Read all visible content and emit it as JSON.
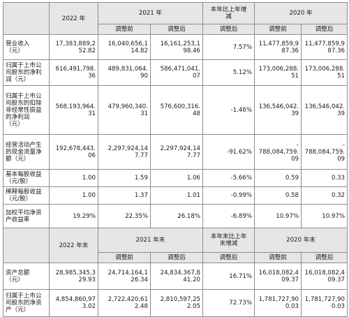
{
  "header1": {
    "year2022": "2022 年",
    "year2021": "2021 年",
    "yoy": [
      "本年比上年增",
      "减"
    ],
    "year2020": "2020 年",
    "adj_before": "调整前",
    "adj_after": "调整后",
    "adj_after_yoy": "调整后"
  },
  "header2": {
    "year2022": "2022 年末",
    "year2021": "2021 年末",
    "yoy": [
      "本年末比上年",
      "末增减"
    ],
    "year2020": "2020 年末",
    "adj_before": "调整前",
    "adj_after": "调整后",
    "adj_after_yoy": "调整后"
  },
  "rows": [
    {
      "label": [
        "营业收入",
        "（元）"
      ],
      "y2022": [
        "17,383,889,2",
        "52.82"
      ],
      "y2021_before": [
        "16,040,656,1",
        "14.82"
      ],
      "y2021_after": [
        "16,161,253,1",
        "98.46"
      ],
      "yoy": [
        "7.57%"
      ],
      "y2020_before": [
        "11,477,859,9",
        "87.36"
      ],
      "y2020_after": [
        "11,477,859,9",
        "87.36"
      ]
    },
    {
      "label": [
        "归属于上市公",
        "司股东的净利",
        "润（元）"
      ],
      "y2022": [
        "616,491,798.",
        "36"
      ],
      "y2021_before": [
        "489,831,064.",
        "90"
      ],
      "y2021_after": [
        "586,471,041.",
        "07"
      ],
      "yoy": [
        "5.12%"
      ],
      "y2020_before": [
        "173,006,288.",
        "51"
      ],
      "y2020_after": [
        "173,006,288.",
        "51"
      ]
    },
    {
      "label": [
        "归属于上市公",
        "司股东的扣除",
        "非经常性损益",
        "的净利润",
        "（元）"
      ],
      "y2022": [
        "568,193,964.",
        "31"
      ],
      "y2021_before": [
        "479,960,340.",
        "31"
      ],
      "y2021_after": [
        "576,600,316.",
        "48"
      ],
      "yoy": [
        "-1.46%"
      ],
      "y2020_before": [
        "136,546,042.",
        "39"
      ],
      "y2020_after": [
        "136,546,042.",
        "39"
      ]
    },
    {
      "label": [
        "经营活动产生",
        "的现金流量净",
        "额（元）"
      ],
      "y2022": [
        "192,678,443.",
        "06"
      ],
      "y2021_before": [
        "2,297,924,14",
        "7.77"
      ],
      "y2021_after": [
        "2,297,924,14",
        "7.77"
      ],
      "yoy": [
        "-91.62%"
      ],
      "y2020_before": [
        "-",
        "788,084,759.",
        "09"
      ],
      "y2020_after": [
        "-",
        "788,084,759.",
        "09"
      ]
    },
    {
      "label": [
        "基本每股收益",
        "（元/股）"
      ],
      "y2022": [
        "1.00"
      ],
      "y2021_before": [
        "1.59"
      ],
      "y2021_after": [
        "1.06"
      ],
      "yoy": [
        "-5.66%"
      ],
      "y2020_before": [
        "0.59"
      ],
      "y2020_after": [
        "0.33"
      ]
    },
    {
      "label": [
        "稀释每股收益",
        "（元/股）"
      ],
      "y2022": [
        "1.00"
      ],
      "y2021_before": [
        "1.37"
      ],
      "y2021_after": [
        "1.01"
      ],
      "yoy": [
        "-0.99%"
      ],
      "y2020_before": [
        "0.58"
      ],
      "y2020_after": [
        "0.32"
      ]
    },
    {
      "label": [
        "加权平均净资",
        "产收益率"
      ],
      "y2022": [
        "19.29%"
      ],
      "y2021_before": [
        "22.35%"
      ],
      "y2021_after": [
        "26.18%"
      ],
      "yoy": [
        "-6.89%"
      ],
      "y2020_before": [
        "10.97%"
      ],
      "y2020_after": [
        "10.97%"
      ]
    }
  ],
  "rows2": [
    {
      "label": [
        "资产总额",
        "（元）"
      ],
      "y2022": [
        "28,985,345,3",
        "29.93"
      ],
      "y2021_before": [
        "24,714,164,1",
        "26.34"
      ],
      "y2021_after": [
        "24,834,367,8",
        "41.20"
      ],
      "yoy": [
        "16.71%"
      ],
      "y2020_before": [
        "16,018,082,4",
        "09.37"
      ],
      "y2020_after": [
        "16,018,082,4",
        "09.37"
      ]
    },
    {
      "label": [
        "归属于上市公",
        "司股东的净资",
        "产（元）"
      ],
      "y2022": [
        "4,854,860,97",
        "3.02"
      ],
      "y2021_before": [
        "2,722,420,61",
        "2.48"
      ],
      "y2021_after": [
        "2,810,597,25",
        "2.05"
      ],
      "yoy": [
        "72.73%"
      ],
      "y2020_before": [
        "1,781,727,90",
        "0.03"
      ],
      "y2020_after": [
        "1,781,727,90",
        "0.03"
      ]
    }
  ]
}
